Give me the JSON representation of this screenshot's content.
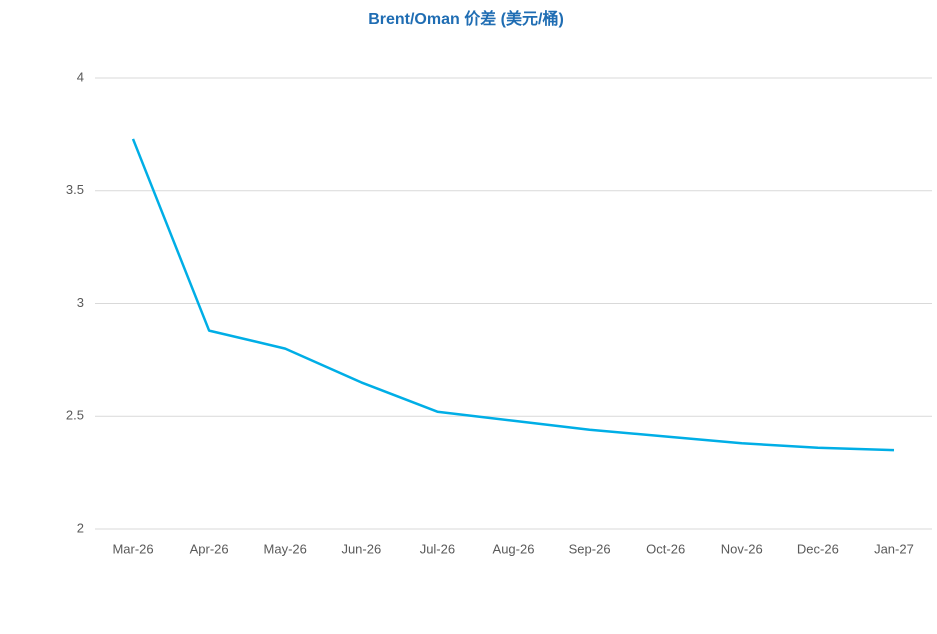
{
  "chart_data": {
    "type": "line",
    "title": "Brent/Oman 价差 (美元/桶)",
    "categories": [
      "Mar-26",
      "Apr-26",
      "May-26",
      "Jun-26",
      "Jul-26",
      "Aug-26",
      "Sep-26",
      "Oct-26",
      "Nov-26",
      "Dec-26",
      "Jan-27"
    ],
    "values": [
      3.73,
      2.88,
      2.8,
      2.65,
      2.52,
      2.48,
      2.44,
      2.41,
      2.38,
      2.36,
      2.35
    ],
    "color": "#00aee6",
    "ylim": [
      2,
      4
    ],
    "yticks": [
      2,
      2.5,
      3,
      3.5,
      4
    ],
    "grid": true
  }
}
